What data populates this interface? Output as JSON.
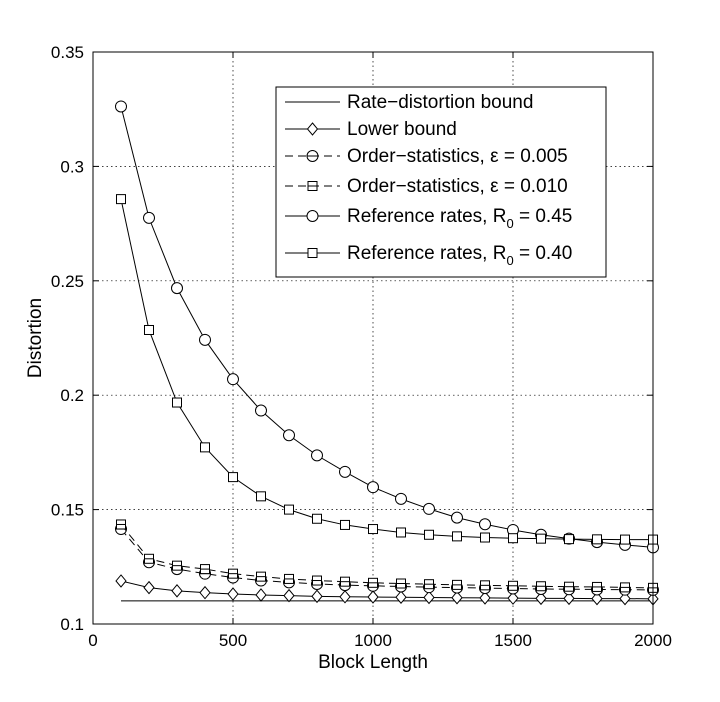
{
  "chart_data": {
    "type": "line",
    "title": "",
    "xlabel": "Block Length",
    "ylabel": "Distortion",
    "xlim": [
      0,
      2000
    ],
    "ylim": [
      0.1,
      0.35
    ],
    "x_ticks": [
      0,
      500,
      1000,
      1500,
      2000
    ],
    "y_ticks": [
      0.1,
      0.15,
      0.2,
      0.25,
      0.3,
      0.35
    ],
    "x_tick_labels": [
      "0",
      "500",
      "1000",
      "1500",
      "2000"
    ],
    "y_tick_labels": [
      "0.1",
      "0.15",
      "0.2",
      "0.25",
      "0.3",
      "0.35"
    ],
    "grid": true,
    "legend_position": "top-right",
    "x": [
      100,
      200,
      300,
      400,
      500,
      600,
      700,
      800,
      900,
      1000,
      1100,
      1200,
      1300,
      1400,
      1500,
      1600,
      1700,
      1800,
      1900,
      2000
    ],
    "series": [
      {
        "name": "Rate−distortion bound",
        "legend_main": "Rate−distortion bound",
        "legend_sub": "",
        "legend_tail": "",
        "style": "solid",
        "marker": "none",
        "values": [
          0.1101,
          0.1101,
          0.1101,
          0.1101,
          0.1101,
          0.1101,
          0.1101,
          0.1101,
          0.1101,
          0.1101,
          0.1101,
          0.1101,
          0.1101,
          0.1101,
          0.1101,
          0.1101,
          0.1101,
          0.1101,
          0.1101,
          0.1101
        ]
      },
      {
        "name": "Lower bound",
        "legend_main": "Lower bound",
        "legend_sub": "",
        "legend_tail": "",
        "style": "solid",
        "marker": "diamond",
        "values": [
          0.1188,
          0.1159,
          0.1145,
          0.1137,
          0.1131,
          0.1127,
          0.1124,
          0.1121,
          0.1119,
          0.1118,
          0.1117,
          0.1116,
          0.1115,
          0.1114,
          0.1113,
          0.1112,
          0.1112,
          0.1111,
          0.1111,
          0.111
        ]
      },
      {
        "name": "Order−statistics, ε = 0.005",
        "legend_main": "Order−statistics, ε = 0.005",
        "legend_sub": "",
        "legend_tail": "",
        "style": "dashed",
        "marker": "circle-bar",
        "values": [
          0.1415,
          0.127,
          0.124,
          0.122,
          0.1203,
          0.119,
          0.1182,
          0.1175,
          0.117,
          0.1167,
          0.1164,
          0.1161,
          0.1159,
          0.1157,
          0.1155,
          0.1153,
          0.1152,
          0.1151,
          0.115,
          0.1149
        ]
      },
      {
        "name": "Order−statistics, ε = 0.010",
        "legend_main": "Order−statistics, ε = 0.010",
        "legend_sub": "",
        "legend_tail": "",
        "style": "dashed",
        "marker": "square-bar",
        "values": [
          0.1435,
          0.1285,
          0.1255,
          0.124,
          0.122,
          0.1207,
          0.1197,
          0.119,
          0.1185,
          0.118,
          0.1177,
          0.1174,
          0.1171,
          0.1169,
          0.1167,
          0.1165,
          0.1163,
          0.1162,
          0.116,
          0.1158
        ]
      },
      {
        "name": "Reference rates, R0 = 0.45",
        "legend_main": "Reference rates, R",
        "legend_sub": "0",
        "legend_tail": " = 0.45",
        "style": "solid",
        "marker": "circle",
        "values": [
          0.3262,
          0.2775,
          0.2468,
          0.2242,
          0.207,
          0.1933,
          0.1825,
          0.1737,
          0.1665,
          0.1598,
          0.1547,
          0.1503,
          0.1465,
          0.1436,
          0.1411,
          0.139,
          0.1373,
          0.1358,
          0.1346,
          0.1335
        ]
      },
      {
        "name": "Reference rates, R0 = 0.40",
        "legend_main": "Reference rates, R",
        "legend_sub": "0",
        "legend_tail": " = 0.40",
        "style": "solid",
        "marker": "square",
        "values": [
          0.2857,
          0.2285,
          0.1968,
          0.1772,
          0.1642,
          0.1558,
          0.15,
          0.146,
          0.1433,
          0.1415,
          0.14,
          0.139,
          0.1383,
          0.1378,
          0.1375,
          0.1373,
          0.1371,
          0.137,
          0.1369,
          0.1369
        ]
      }
    ]
  }
}
